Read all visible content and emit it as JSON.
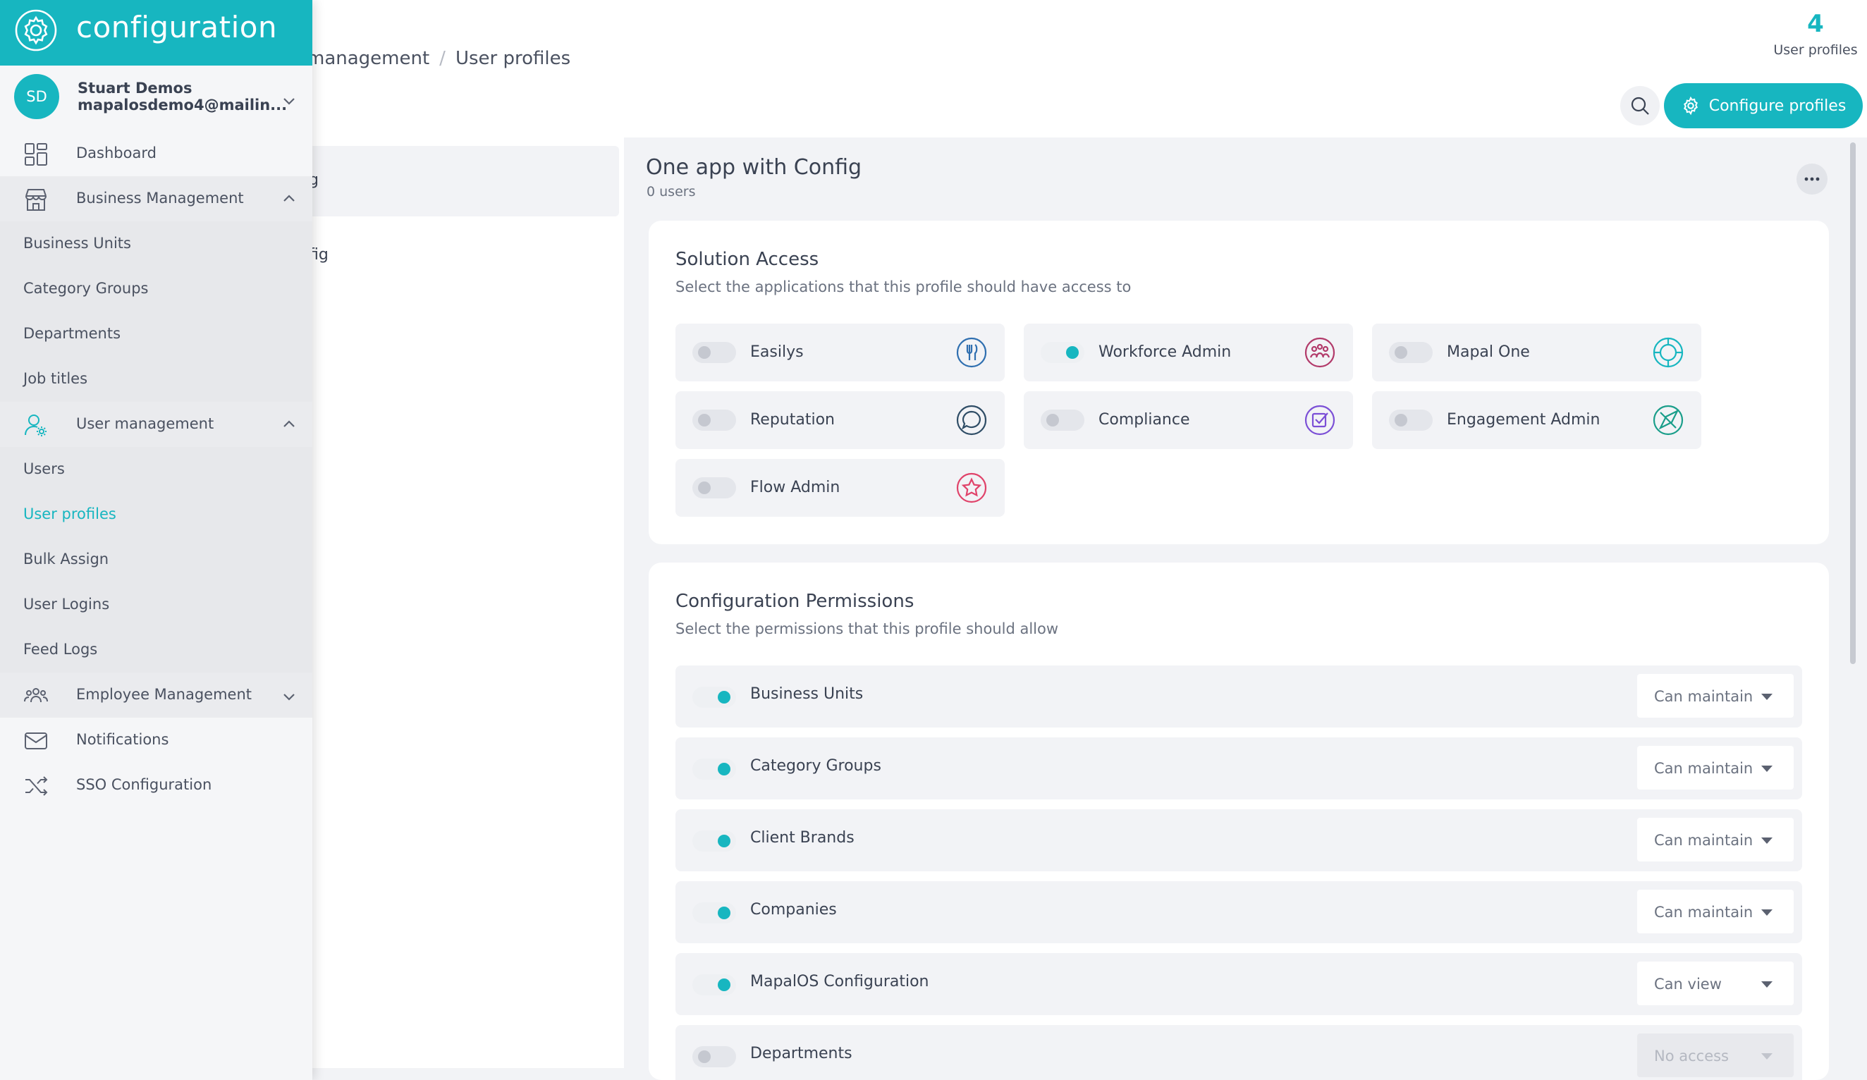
{
  "header": {
    "breadcrumb": [
      "management",
      "User profiles"
    ],
    "stat_value": "4",
    "stat_label": "User profiles",
    "configure_label": "Configure profiles"
  },
  "profile_list": [
    {
      "name": "g"
    },
    {
      "name": "fig"
    }
  ],
  "profile": {
    "title": "One app with Config",
    "users": "0 users"
  },
  "solution_access": {
    "title": "Solution Access",
    "subtitle": "Select the applications that this profile should have access to",
    "apps": [
      {
        "label": "Easilys",
        "enabled": false,
        "icon": "cutlery-icon",
        "color": "#2f6fb0"
      },
      {
        "label": "Workforce Admin",
        "enabled": true,
        "icon": "workforce-icon",
        "color": "#b23a6a"
      },
      {
        "label": "Mapal One",
        "enabled": false,
        "icon": "mapal-one-icon",
        "color": "#17b6c0"
      },
      {
        "label": "Reputation",
        "enabled": false,
        "icon": "chat-bubble-icon",
        "color": "#2f4d66"
      },
      {
        "label": "Compliance",
        "enabled": false,
        "icon": "checkbox-icon",
        "color": "#7b4fd6"
      },
      {
        "label": "Engagement Admin",
        "enabled": false,
        "icon": "compass-icon",
        "color": "#1a9e8a"
      },
      {
        "label": "Flow Admin",
        "enabled": false,
        "icon": "star-icon",
        "color": "#e0436a"
      }
    ]
  },
  "config_permissions": {
    "title": "Configuration Permissions",
    "subtitle": "Select the permissions that this profile should allow",
    "rows": [
      {
        "label": "Business Units",
        "enabled": true,
        "value": "Can maintain"
      },
      {
        "label": "Category Groups",
        "enabled": true,
        "value": "Can maintain"
      },
      {
        "label": "Client Brands",
        "enabled": true,
        "value": "Can maintain"
      },
      {
        "label": "Companies",
        "enabled": true,
        "value": "Can maintain"
      },
      {
        "label": "MapalOS Configuration",
        "enabled": true,
        "value": "Can view"
      },
      {
        "label": "Departments",
        "enabled": false,
        "value": "No access"
      }
    ]
  },
  "sidebar": {
    "title": "configuration",
    "user": {
      "initials": "SD",
      "name": "Stuart Demos",
      "email": "mapalosdemo4@mailin..."
    },
    "nav": {
      "dashboard": "Dashboard",
      "business_management": "Business Management",
      "business_sub": [
        "Business Units",
        "Category Groups",
        "Departments",
        "Job titles"
      ],
      "user_management": "User management",
      "user_sub": [
        "Users",
        "User profiles",
        "Bulk Assign",
        "User Logins",
        "Feed Logs"
      ],
      "employee_management": "Employee Management",
      "notifications": "Notifications",
      "sso": "SSO Configuration"
    },
    "active_item": "User profiles",
    "accent": "#17b6c0"
  }
}
